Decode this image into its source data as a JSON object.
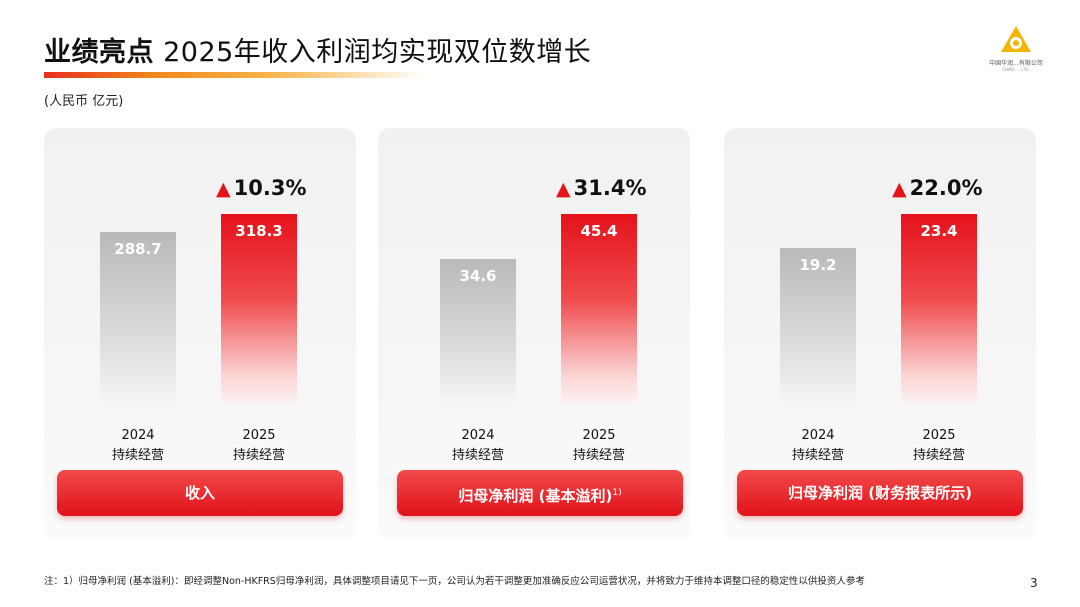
{
  "header": {
    "title_bold": "业绩亮点",
    "title_rest": "2025年收入利润均实现双位数增长",
    "unit": "(人民币 亿元)"
  },
  "logo": {
    "name": "中国华润...有限公司",
    "sub": "CHINA ... LTD."
  },
  "chart_data": [
    {
      "type": "bar",
      "categories": [
        "2024 持续经营",
        "2025 持续经营"
      ],
      "values": [
        288.7,
        318.3
      ],
      "value_labels": [
        "288.7",
        "318.3"
      ],
      "growth": "10.3%",
      "label": "收入"
    },
    {
      "type": "bar",
      "categories": [
        "2024 持续经营",
        "2025 持续经营"
      ],
      "values": [
        34.6,
        45.4
      ],
      "value_labels": [
        "34.6",
        "45.4"
      ],
      "growth": "31.4%",
      "label": "归母净利润 (基本溢利)",
      "label_sup": "1)"
    },
    {
      "type": "bar",
      "categories": [
        "2024 持续经营",
        "2025 持续经营"
      ],
      "values": [
        19.2,
        23.4
      ],
      "value_labels": [
        "19.2",
        "23.4"
      ],
      "growth": "22.0%",
      "label": "归母净利润 (财务报表所示)"
    }
  ],
  "xlabels": {
    "year_2024": "2024",
    "year_2025": "2025",
    "sub": "持续经营"
  },
  "growth_icon": "▲",
  "colors": {
    "accent_red": "#e4121b",
    "bar_gray": "#b9b9b9"
  },
  "footnote": "注：1）归母净利润 (基本溢利)：即经调整Non-HKFRS归母净利润，具体调整项目请见下一页，公司认为若干调整更加准确反应公司运营状况，并将致力于维持本调整口径的稳定性以供投资人参考",
  "page_number": "3"
}
